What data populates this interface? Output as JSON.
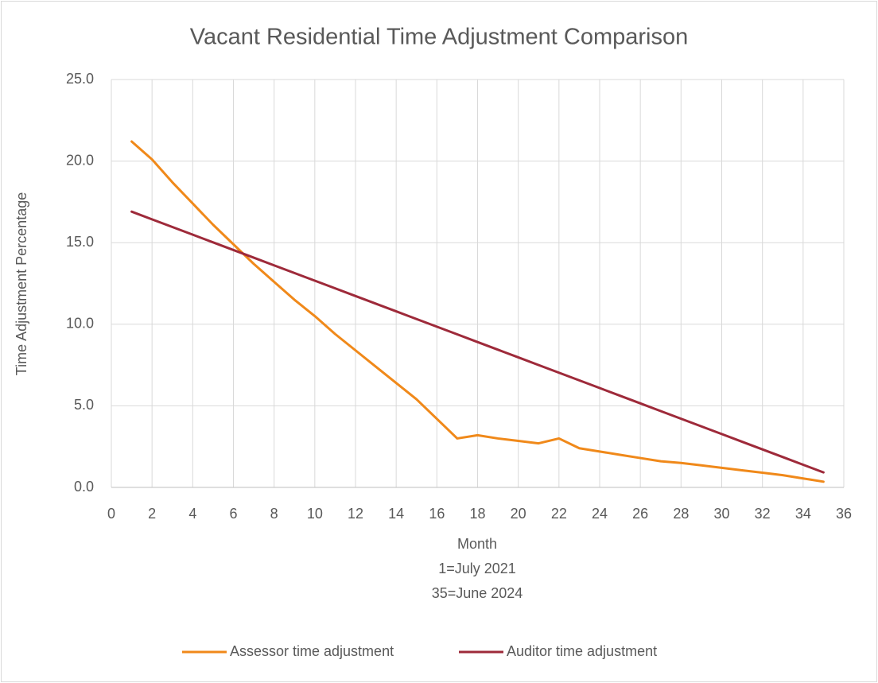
{
  "chart_data": {
    "type": "line",
    "title": "Vacant Residential Time Adjustment Comparison",
    "xlabel": [
      "Month",
      "1=July 2021",
      "35=June 2024"
    ],
    "ylabel": "Time Adjustment Percentage",
    "x": [
      1,
      2,
      3,
      4,
      5,
      6,
      7,
      8,
      9,
      10,
      11,
      12,
      13,
      14,
      15,
      16,
      17,
      18,
      19,
      20,
      21,
      22,
      23,
      24,
      25,
      26,
      27,
      28,
      29,
      30,
      31,
      32,
      33,
      34,
      35
    ],
    "series": [
      {
        "name": "Assessor time adjustment",
        "color": "#f0891a",
        "values": [
          21.2,
          20.1,
          18.7,
          17.4,
          16.1,
          14.9,
          13.7,
          12.6,
          11.5,
          10.5,
          9.4,
          8.4,
          7.4,
          6.4,
          5.4,
          4.2,
          3.0,
          3.2,
          3.0,
          2.85,
          2.7,
          3.0,
          2.4,
          2.2,
          2.0,
          1.8,
          1.6,
          1.5,
          1.35,
          1.2,
          1.05,
          0.9,
          0.75,
          0.55,
          0.35
        ]
      },
      {
        "name": "Auditor time adjustment",
        "color": "#9e2a3a",
        "values": [
          16.9,
          16.43,
          15.96,
          15.49,
          15.02,
          14.55,
          14.08,
          13.61,
          13.14,
          12.67,
          12.2,
          11.73,
          11.26,
          10.79,
          10.32,
          9.85,
          9.38,
          8.91,
          8.44,
          7.97,
          7.5,
          7.03,
          6.56,
          6.09,
          5.62,
          5.15,
          4.68,
          4.21,
          3.74,
          3.27,
          2.8,
          2.33,
          1.86,
          1.39,
          0.92
        ]
      }
    ],
    "xlim": [
      0,
      36
    ],
    "xticks": [
      0,
      2,
      4,
      6,
      8,
      10,
      12,
      14,
      16,
      18,
      20,
      22,
      24,
      26,
      28,
      30,
      32,
      34,
      36
    ],
    "ylim": [
      0,
      25
    ],
    "yticks": [
      {
        "value": 0,
        "label": "0.0"
      },
      {
        "value": 5,
        "label": "5.0"
      },
      {
        "value": 10,
        "label": "10.0"
      },
      {
        "value": 15,
        "label": "15.0"
      },
      {
        "value": 20,
        "label": "20.0"
      },
      {
        "value": 25,
        "label": "25.0"
      }
    ],
    "grid": true,
    "legend": "bottom"
  }
}
